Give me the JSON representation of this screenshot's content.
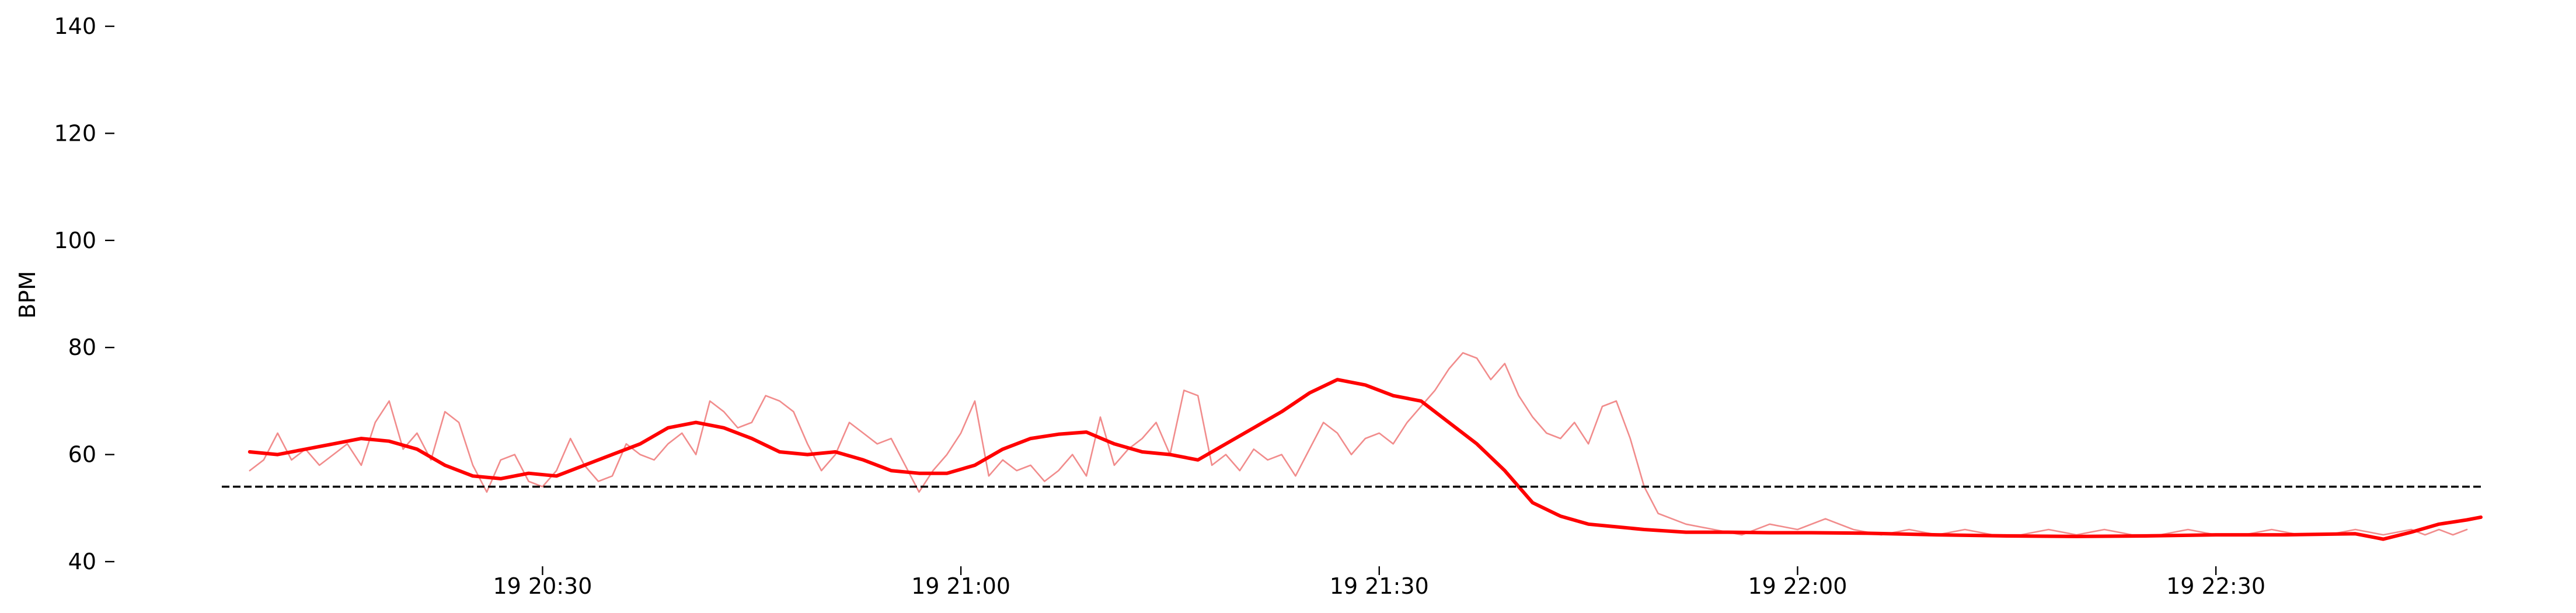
{
  "chart_data": {
    "type": "line",
    "title": "",
    "xlabel": "",
    "ylabel": "BPM",
    "ylim": [
      40,
      140
    ],
    "xlim": [
      "19 20:07",
      "19 22:49"
    ],
    "grid": false,
    "y_ticks": [
      40,
      60,
      80,
      100,
      120,
      140
    ],
    "x_ticks": [
      "19 20:30",
      "19 21:00",
      "19 21:30",
      "19 22:00",
      "19 22:30"
    ],
    "reference_line": {
      "value": 54,
      "style": "dashed",
      "color": "#000000"
    },
    "series": [
      {
        "role": "raw",
        "color": "#f08080",
        "x": [
          "19 20:09",
          "19 20:10",
          "19 20:11",
          "19 20:12",
          "19 20:13",
          "19 20:14",
          "19 20:15",
          "19 20:16",
          "19 20:17",
          "19 20:18",
          "19 20:19",
          "19 20:20",
          "19 20:21",
          "19 20:22",
          "19 20:23",
          "19 20:24",
          "19 20:25",
          "19 20:26",
          "19 20:27",
          "19 20:28",
          "19 20:29",
          "19 20:30",
          "19 20:31",
          "19 20:32",
          "19 20:33",
          "19 20:34",
          "19 20:35",
          "19 20:36",
          "19 20:37",
          "19 20:38",
          "19 20:39",
          "19 20:40",
          "19 20:41",
          "19 20:42",
          "19 20:43",
          "19 20:44",
          "19 20:45",
          "19 20:46",
          "19 20:47",
          "19 20:48",
          "19 20:49",
          "19 20:50",
          "19 20:51",
          "19 20:52",
          "19 20:53",
          "19 20:54",
          "19 20:55",
          "19 20:56",
          "19 20:57",
          "19 20:58",
          "19 20:59",
          "19 21:00",
          "19 21:01",
          "19 21:02",
          "19 21:03",
          "19 21:04",
          "19 21:05",
          "19 21:06",
          "19 21:07",
          "19 21:08",
          "19 21:09",
          "19 21:10",
          "19 21:11",
          "19 21:12",
          "19 21:13",
          "19 21:14",
          "19 21:15",
          "19 21:16",
          "19 21:17",
          "19 21:18",
          "19 21:19",
          "19 21:20",
          "19 21:21",
          "19 21:22",
          "19 21:23",
          "19 21:24",
          "19 21:25",
          "19 21:26",
          "19 21:27",
          "19 21:28",
          "19 21:29",
          "19 21:30",
          "19 21:31",
          "19 21:32",
          "19 21:33",
          "19 21:34",
          "19 21:35",
          "19 21:36",
          "19 21:37",
          "19 21:38",
          "19 21:39",
          "19 21:40",
          "19 21:41",
          "19 21:42",
          "19 21:43",
          "19 21:44",
          "19 21:45",
          "19 21:46",
          "19 21:47",
          "19 21:48",
          "19 21:49",
          "19 21:50",
          "19 21:52",
          "19 21:54",
          "19 21:56",
          "19 21:58",
          "19 22:00",
          "19 22:02",
          "19 22:04",
          "19 22:06",
          "19 22:08",
          "19 22:10",
          "19 22:12",
          "19 22:14",
          "19 22:16",
          "19 22:18",
          "19 22:20",
          "19 22:22",
          "19 22:24",
          "19 22:26",
          "19 22:28",
          "19 22:30",
          "19 22:32",
          "19 22:34",
          "19 22:36",
          "19 22:38",
          "19 22:40",
          "19 22:42",
          "19 22:44",
          "19 22:45",
          "19 22:46",
          "19 22:47",
          "19 22:48"
        ],
        "y": [
          57,
          59,
          64,
          59,
          61,
          58,
          60,
          62,
          58,
          66,
          70,
          61,
          64,
          59,
          68,
          66,
          58,
          53,
          59,
          60,
          55,
          54,
          57,
          63,
          58,
          55,
          56,
          62,
          60,
          59,
          62,
          64,
          60,
          70,
          68,
          65,
          66,
          71,
          70,
          68,
          62,
          57,
          60,
          66,
          64,
          62,
          63,
          58,
          53,
          57,
          60,
          64,
          70,
          56,
          59,
          57,
          58,
          55,
          57,
          60,
          56,
          67,
          58,
          61,
          63,
          66,
          60,
          72,
          71,
          58,
          60,
          57,
          61,
          59,
          60,
          56,
          61,
          66,
          64,
          60,
          63,
          64,
          62,
          66,
          69,
          72,
          76,
          79,
          78,
          74,
          77,
          71,
          67,
          64,
          63,
          66,
          62,
          69,
          70,
          63,
          54,
          49,
          47,
          46,
          45,
          47,
          46,
          48,
          46,
          45,
          46,
          45,
          46,
          45,
          45,
          46,
          45,
          46,
          45,
          45,
          46,
          45,
          45,
          46,
          45,
          45,
          46,
          45,
          46,
          45,
          46,
          45,
          46
        ]
      },
      {
        "role": "smoothed",
        "color": "#ff0000",
        "x": [
          "19 20:09",
          "19 20:11",
          "19 20:13",
          "19 20:15",
          "19 20:17",
          "19 20:19",
          "19 20:21",
          "19 20:23",
          "19 20:25",
          "19 20:27",
          "19 20:29",
          "19 20:31",
          "19 20:33",
          "19 20:35",
          "19 20:37",
          "19 20:39",
          "19 20:41",
          "19 20:43",
          "19 20:45",
          "19 20:47",
          "19 20:49",
          "19 20:51",
          "19 20:53",
          "19 20:55",
          "19 20:57",
          "19 20:59",
          "19 21:01",
          "19 21:03",
          "19 21:05",
          "19 21:07",
          "19 21:09",
          "19 21:11",
          "19 21:13",
          "19 21:15",
          "19 21:17",
          "19 21:19",
          "19 21:21",
          "19 21:23",
          "19 21:25",
          "19 21:27",
          "19 21:29",
          "19 21:31",
          "19 21:33",
          "19 21:35",
          "19 21:37",
          "19 21:39",
          "19 21:41",
          "19 21:43",
          "19 21:45",
          "19 21:47",
          "19 21:49",
          "19 21:52",
          "19 21:55",
          "19 21:58",
          "19 22:01",
          "19 22:05",
          "19 22:10",
          "19 22:15",
          "19 22:20",
          "19 22:25",
          "19 22:30",
          "19 22:35",
          "19 22:40",
          "19 22:42",
          "19 22:44",
          "19 22:46",
          "19 22:48",
          "19 22:49"
        ],
        "y": [
          60.5,
          60,
          61,
          62,
          63,
          62.5,
          61,
          58,
          56,
          55.5,
          56.5,
          56,
          58,
          60,
          62,
          65,
          66,
          65,
          63,
          60.5,
          60,
          60.5,
          59,
          57,
          56.5,
          56.5,
          58,
          61,
          63,
          63.8,
          64.2,
          62,
          60.5,
          60,
          59,
          62,
          65,
          68,
          71.5,
          74,
          73,
          71,
          70,
          66,
          62,
          57,
          51,
          48.5,
          47,
          46.5,
          46,
          45.5,
          45.5,
          45.4,
          45.4,
          45.3,
          45,
          44.8,
          44.7,
          44.8,
          45,
          45,
          45.2,
          44.2,
          45.5,
          47,
          47.8,
          48.3
        ]
      }
    ]
  }
}
